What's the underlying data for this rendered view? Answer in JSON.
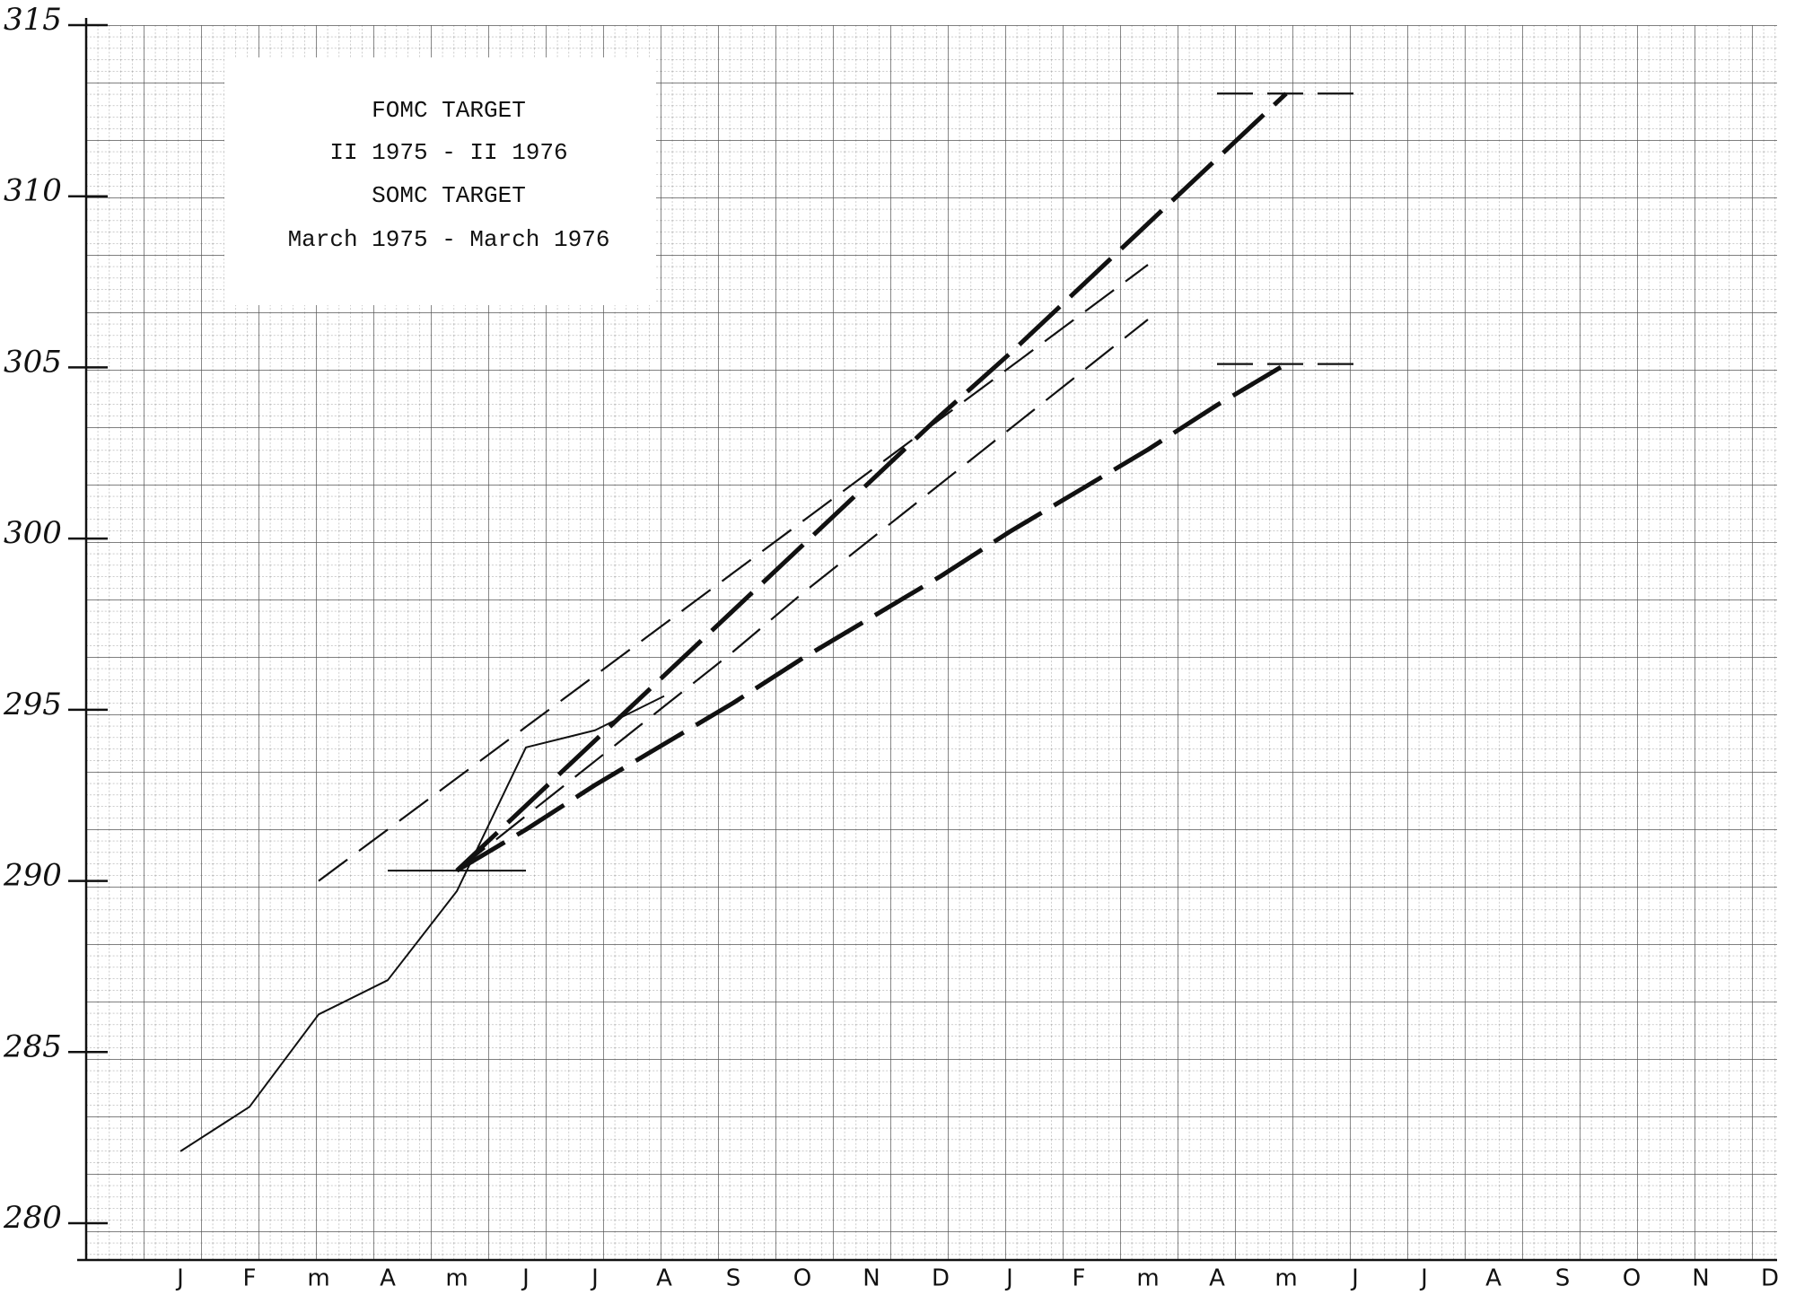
{
  "chart_data": {
    "type": "line",
    "annotations": [
      "FOMC TARGET",
      "II 1975 - II 1976",
      "SOMC TARGET",
      "March 1975 - March 1976"
    ],
    "categories": [
      "J",
      "F",
      "m",
      "A",
      "m",
      "J",
      "J",
      "A",
      "S",
      "O",
      "N",
      "D",
      "J",
      "F",
      "m",
      "A",
      "m",
      "J",
      "J",
      "A",
      "S",
      "O",
      "N",
      "D"
    ],
    "ylim": [
      280,
      315
    ],
    "yticks": [
      280,
      285,
      290,
      295,
      300,
      305,
      310,
      315
    ],
    "series": [
      {
        "color": "#111",
        "style": "thin-solid",
        "values": [
          282.1,
          283.4,
          286.1,
          287.1,
          289.7,
          293.9,
          294.4,
          295.4,
          null,
          null,
          null,
          null,
          null,
          null,
          null,
          null,
          null,
          null,
          null,
          null,
          null,
          null,
          null,
          null
        ]
      },
      {
        "color": "#111",
        "style": "thin-solid",
        "values": [
          null,
          null,
          null,
          290.3,
          290.3,
          290.3,
          null,
          null,
          null,
          null,
          null,
          null,
          null,
          null,
          null,
          null,
          null,
          null,
          null,
          null,
          null,
          null,
          null,
          null
        ]
      },
      {
        "color": "#111",
        "style": "bold-dash",
        "values": [
          null,
          null,
          null,
          null,
          290.3,
          292.2,
          294.1,
          296.0,
          297.9,
          299.8,
          301.7,
          303.6,
          305.4,
          307.3,
          309.2,
          311.1,
          313.0,
          null,
          null,
          null,
          null,
          null,
          null,
          null
        ]
      },
      {
        "color": "#111",
        "style": "bold-dash",
        "values": [
          null,
          null,
          null,
          null,
          290.3,
          291.5,
          292.8,
          294.0,
          295.2,
          296.5,
          297.7,
          298.9,
          300.2,
          301.4,
          302.6,
          303.9,
          305.1,
          null,
          null,
          null,
          null,
          null,
          null,
          null
        ]
      },
      {
        "color": "#111",
        "style": "thin-dash",
        "values": [
          null,
          null,
          290.0,
          291.5,
          293.0,
          294.5,
          296.0,
          297.5,
          299.0,
          300.5,
          302.0,
          303.5,
          305.0,
          306.5,
          308.0,
          null,
          null,
          null,
          null,
          null,
          null,
          null,
          null,
          null
        ]
      },
      {
        "color": "#111",
        "style": "thin-dash",
        "values": [
          null,
          null,
          null,
          null,
          290.3,
          291.9,
          293.5,
          295.1,
          296.7,
          298.4,
          300.0,
          301.6,
          303.2,
          304.8,
          306.4,
          null,
          null,
          null,
          null,
          null,
          null,
          null,
          null,
          null
        ]
      },
      {
        "color": "#111",
        "style": "thin-dash",
        "values": [
          null,
          null,
          null,
          null,
          null,
          null,
          null,
          null,
          null,
          null,
          null,
          null,
          null,
          null,
          null,
          313.0,
          313.0,
          313.0,
          null,
          null,
          null,
          null,
          null,
          null
        ]
      },
      {
        "color": "#111",
        "style": "thin-dash",
        "values": [
          null,
          null,
          null,
          null,
          null,
          null,
          null,
          null,
          null,
          null,
          null,
          null,
          null,
          null,
          null,
          305.1,
          305.1,
          305.1,
          null,
          null,
          null,
          null,
          null,
          null
        ]
      }
    ]
  }
}
